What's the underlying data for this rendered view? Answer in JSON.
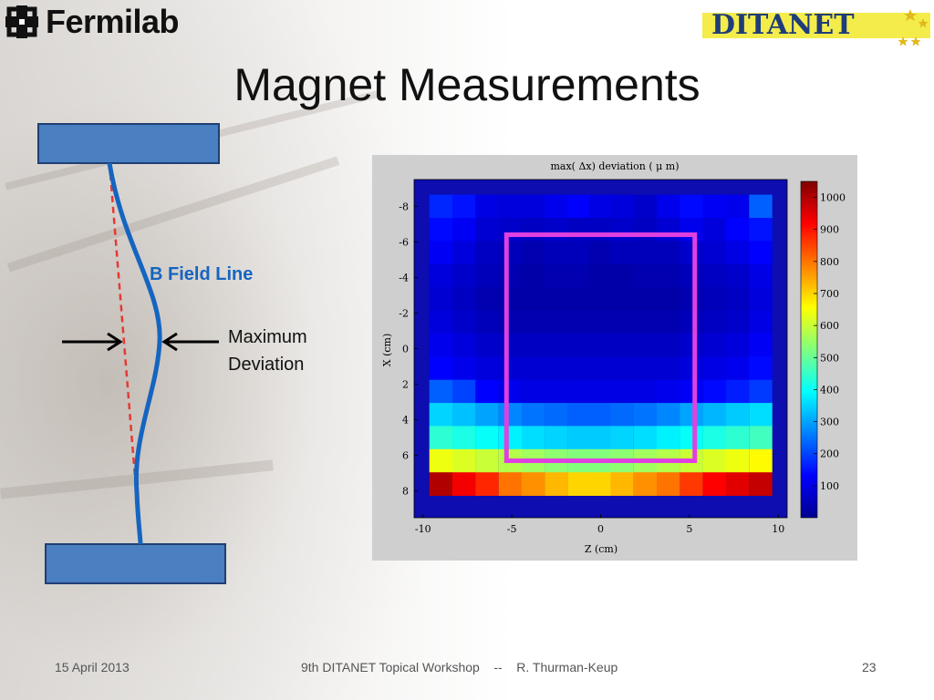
{
  "slide": {
    "title": "Magnet Measurements",
    "brand_left": "Fermilab",
    "brand_right": "DITANET"
  },
  "diagram": {
    "field_line_label": "B Field Line",
    "deviation_label_line1": "Maximum",
    "deviation_label_line2": "Deviation",
    "colors": {
      "magnet": "#4a7fc1",
      "field_line": "#1565c0",
      "straight_line": "#e53935"
    }
  },
  "chart_data": {
    "type": "heatmap",
    "title": "max( Δx) deviation  ( μ m)",
    "xlabel": "Z  (cm)",
    "ylabel": "X  (cm)",
    "xlim": [
      -10.5,
      10.5
    ],
    "ylim": [
      -9.5,
      9.5
    ],
    "y_reversed": true,
    "xticks": [
      -10,
      -5,
      0,
      5,
      10
    ],
    "xtick_labels": [
      "-10",
      "-5",
      "0",
      "5",
      "10"
    ],
    "yticks": [
      -8,
      -6,
      -4,
      -2,
      0,
      2,
      4,
      6,
      8
    ],
    "ytick_labels": [
      "-8",
      "-6",
      "-4",
      "-2",
      "0",
      "2",
      "4",
      "6",
      "8"
    ],
    "colorbar": {
      "min": 0,
      "max": 1050,
      "ticks": [
        100,
        200,
        300,
        400,
        500,
        600,
        700,
        800,
        900,
        1000
      ]
    },
    "z_values": [
      -9,
      -7.7,
      -6.4,
      -5.1,
      -3.8,
      -2.5,
      -1.2,
      0,
      1.2,
      2.5,
      3.8,
      5.1,
      6.4,
      7.7,
      9
    ],
    "x_values": [
      -8,
      -6.7,
      -5.4,
      -4.1,
      -2.8,
      -1.5,
      -0.2,
      1.1,
      2.4,
      3.7,
      5,
      6.3,
      7.6
    ],
    "values": [
      [
        170,
        150,
        100,
        90,
        90,
        110,
        130,
        100,
        90,
        70,
        110,
        140,
        120,
        110,
        230
      ],
      [
        140,
        120,
        80,
        70,
        60,
        70,
        60,
        60,
        70,
        60,
        80,
        110,
        90,
        130,
        150
      ],
      [
        120,
        90,
        60,
        50,
        40,
        50,
        50,
        40,
        50,
        50,
        50,
        70,
        80,
        100,
        130
      ],
      [
        90,
        70,
        50,
        40,
        30,
        40,
        40,
        30,
        30,
        40,
        40,
        50,
        60,
        70,
        100
      ],
      [
        80,
        60,
        40,
        30,
        30,
        30,
        30,
        30,
        30,
        30,
        30,
        40,
        50,
        60,
        90
      ],
      [
        90,
        70,
        50,
        40,
        40,
        40,
        40,
        40,
        40,
        40,
        40,
        50,
        60,
        70,
        100
      ],
      [
        110,
        90,
        70,
        60,
        60,
        60,
        60,
        60,
        60,
        60,
        60,
        70,
        80,
        90,
        120
      ],
      [
        130,
        110,
        90,
        80,
        80,
        80,
        80,
        80,
        80,
        80,
        80,
        90,
        100,
        110,
        140
      ],
      [
        230,
        200,
        130,
        110,
        100,
        100,
        100,
        100,
        100,
        100,
        110,
        120,
        140,
        160,
        190
      ],
      [
        350,
        330,
        300,
        270,
        250,
        240,
        230,
        230,
        240,
        250,
        270,
        300,
        320,
        340,
        360
      ],
      [
        440,
        420,
        400,
        380,
        360,
        350,
        340,
        340,
        350,
        360,
        380,
        400,
        420,
        440,
        460
      ],
      [
        640,
        620,
        600,
        580,
        560,
        540,
        530,
        530,
        540,
        560,
        580,
        600,
        620,
        640,
        660
      ],
      [
        1000,
        930,
        880,
        800,
        770,
        730,
        700,
        700,
        730,
        770,
        800,
        860,
        920,
        950,
        980
      ]
    ],
    "highlight_box": {
      "z": [
        -5.3,
        5.3
      ],
      "x": [
        -6.4,
        6.3
      ],
      "color": "#e040e0"
    }
  },
  "footer": {
    "date": "15 April 2013",
    "center": "9th DITANET Topical Workshop    --    R. Thurman-Keup",
    "page": "23"
  }
}
